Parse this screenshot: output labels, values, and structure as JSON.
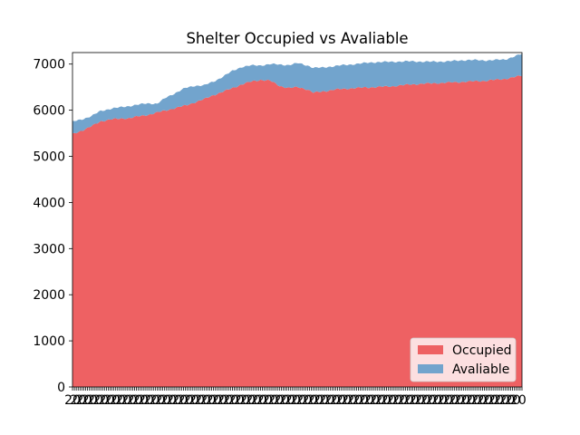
{
  "chart_data": {
    "type": "area",
    "title": "Shelter Occupied vs Avaliable",
    "xlabel": "",
    "ylabel": "",
    "ylim": [
      0,
      7250
    ],
    "yticks": [
      0,
      1000,
      2000,
      3000,
      4000,
      5000,
      6000,
      7000
    ],
    "grid": false,
    "legend_position": "lower-right",
    "stacked": true,
    "x_tick_labels_note_hidden": true,
    "x": {
      "count": 240
    },
    "series": [
      {
        "name": "Occupied",
        "color": "#ee6163",
        "keypoints": [
          [
            0,
            5480
          ],
          [
            5,
            5560
          ],
          [
            10,
            5650
          ],
          [
            15,
            5760
          ],
          [
            20,
            5800
          ],
          [
            30,
            5830
          ],
          [
            40,
            5900
          ],
          [
            50,
            6000
          ],
          [
            55,
            6050
          ],
          [
            60,
            6100
          ],
          [
            65,
            6170
          ],
          [
            70,
            6240
          ],
          [
            75,
            6330
          ],
          [
            80,
            6400
          ],
          [
            85,
            6480
          ],
          [
            90,
            6560
          ],
          [
            95,
            6620
          ],
          [
            100,
            6660
          ],
          [
            105,
            6640
          ],
          [
            110,
            6530
          ],
          [
            115,
            6480
          ],
          [
            120,
            6500
          ],
          [
            125,
            6450
          ],
          [
            128,
            6380
          ],
          [
            132,
            6400
          ],
          [
            140,
            6450
          ],
          [
            150,
            6480
          ],
          [
            160,
            6500
          ],
          [
            170,
            6520
          ],
          [
            180,
            6560
          ],
          [
            190,
            6580
          ],
          [
            200,
            6600
          ],
          [
            210,
            6620
          ],
          [
            220,
            6640
          ],
          [
            230,
            6680
          ],
          [
            239,
            6750
          ]
        ]
      },
      {
        "name": "Avaliable",
        "color": "#72a4cd",
        "keypoints": [
          [
            0,
            270
          ],
          [
            10,
            220
          ],
          [
            20,
            230
          ],
          [
            30,
            260
          ],
          [
            40,
            250
          ],
          [
            45,
            190
          ],
          [
            50,
            280
          ],
          [
            55,
            330
          ],
          [
            60,
            380
          ],
          [
            65,
            360
          ],
          [
            70,
            300
          ],
          [
            75,
            290
          ],
          [
            80,
            330
          ],
          [
            85,
            370
          ],
          [
            90,
            380
          ],
          [
            95,
            350
          ],
          [
            100,
            310
          ],
          [
            105,
            360
          ],
          [
            110,
            460
          ],
          [
            115,
            500
          ],
          [
            120,
            520
          ],
          [
            125,
            520
          ],
          [
            128,
            540
          ],
          [
            132,
            520
          ],
          [
            140,
            510
          ],
          [
            150,
            520
          ],
          [
            160,
            540
          ],
          [
            170,
            530
          ],
          [
            180,
            500
          ],
          [
            190,
            470
          ],
          [
            200,
            460
          ],
          [
            210,
            470
          ],
          [
            220,
            440
          ],
          [
            230,
            420
          ],
          [
            239,
            470
          ]
        ]
      }
    ]
  }
}
